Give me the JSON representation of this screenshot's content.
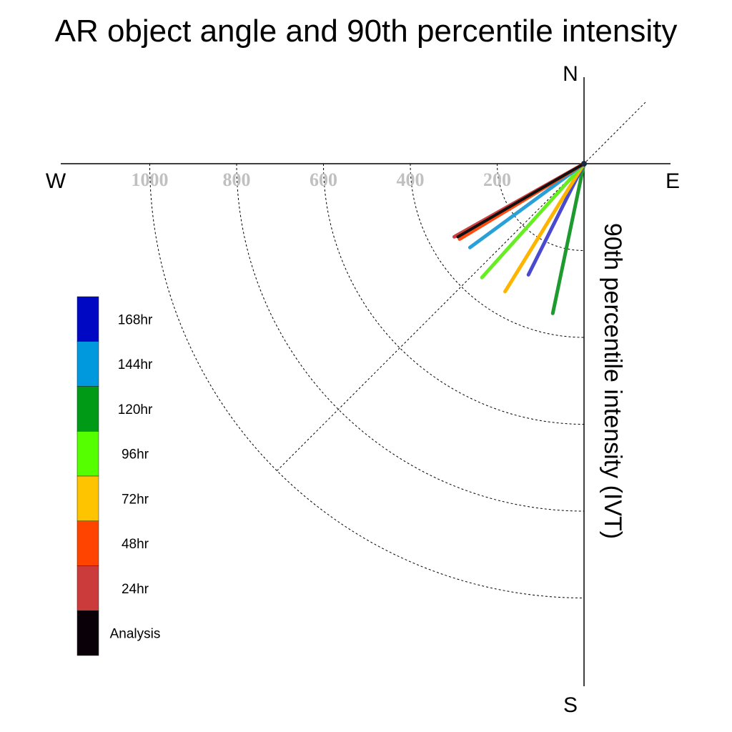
{
  "chart_data": {
    "type": "polar-vector",
    "title": "AR object angle and 90th percentile intensity",
    "compass": {
      "north": "N",
      "south": "S",
      "east": "E",
      "west": "W"
    },
    "radial_axis": {
      "label": "90th percentile intensity (IVT)",
      "tick_labels": [
        "1000",
        "800",
        "600",
        "400",
        "200"
      ],
      "rings": [
        200,
        400,
        600,
        800,
        1000
      ],
      "max": 1000
    },
    "quadrant_shown": "south-west",
    "grid": true,
    "legend": {
      "position": "left",
      "entries": [
        {
          "label": "168hr",
          "color": "#0008c4"
        },
        {
          "label": "144hr",
          "color": "#0099dd"
        },
        {
          "label": "120hr",
          "color": "#009a17"
        },
        {
          "label": "96hr",
          "color": "#55ff00"
        },
        {
          "label": "72hr",
          "color": "#ffc400"
        },
        {
          "label": "48hr",
          "color": "#ff4400"
        },
        {
          "label": "24hr",
          "color": "#cc3b3b"
        },
        {
          "label": "Analysis",
          "color": "#0a0008"
        }
      ]
    },
    "series": [
      {
        "name": "120hr",
        "color": "#1e9a2e",
        "bearing_deg": 191.8,
        "intensity": 352
      },
      {
        "name": "168hr",
        "color": "#4a4ad0",
        "bearing_deg": 206.6,
        "intensity": 286
      },
      {
        "name": "72hr",
        "color": "#ffb400",
        "bearing_deg": 211.7,
        "intensity": 346
      },
      {
        "name": "96hr",
        "color": "#66ee22",
        "bearing_deg": 221.9,
        "intensity": 352
      },
      {
        "name": "144hr",
        "color": "#2aa0d8",
        "bearing_deg": 233.7,
        "intensity": 326
      },
      {
        "name": "24hr",
        "color": "#d04040",
        "bearing_deg": 240.6,
        "intensity": 343
      },
      {
        "name": "48hr",
        "color": "#ff4a10",
        "bearing_deg": 238.8,
        "intensity": 335
      },
      {
        "name": "Analysis",
        "color": "#111111",
        "bearing_deg": 239.9,
        "intensity": 336
      }
    ]
  }
}
